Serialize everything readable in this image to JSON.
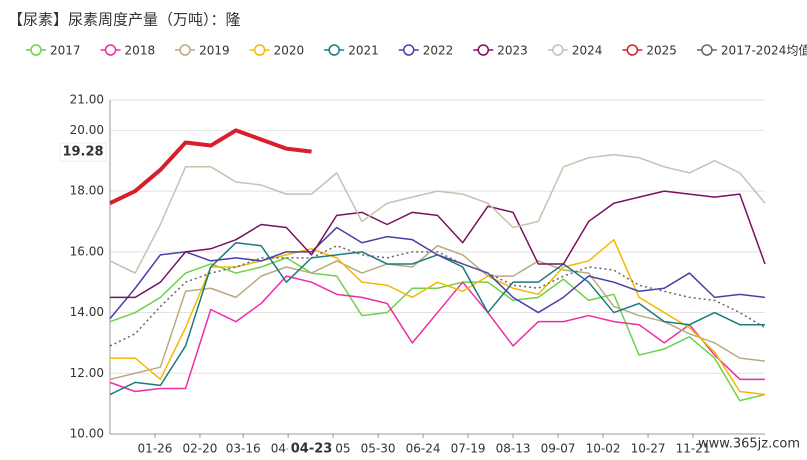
{
  "chart_data": {
    "type": "line",
    "title": "【尿素】尿素周度产量（万吨）：隆",
    "x": [
      "01-01",
      "01-15",
      "01-29",
      "02-12",
      "02-26",
      "03-12",
      "03-26",
      "04-09",
      "04-23",
      "05-07",
      "05-21",
      "06-04",
      "06-18",
      "07-02",
      "07-16",
      "07-30",
      "08-13",
      "08-27",
      "09-10",
      "09-24",
      "10-08",
      "10-22",
      "11-05",
      "11-19",
      "12-03",
      "12-17",
      "12-31"
    ],
    "xlim": [
      "01-01",
      "12-31"
    ],
    "xticks": [
      "01-26",
      "02-20",
      "03-16",
      "04-10",
      "05-05",
      "05-30",
      "06-24",
      "07-19",
      "08-13",
      "09-07",
      "10-02",
      "10-27",
      "11-21"
    ],
    "highlight_date": "04-23",
    "ylim": [
      10,
      21
    ],
    "yticks": [
      {
        "value": 10,
        "label": "10.00"
      },
      {
        "value": 12,
        "label": "12.00"
      },
      {
        "value": 14,
        "label": "14.00"
      },
      {
        "value": 16,
        "label": "16.00"
      },
      {
        "value": 18,
        "label": "18.00"
      },
      {
        "value": 20,
        "label": "20.00"
      },
      {
        "value": 21,
        "label": "21.00"
      }
    ],
    "grid": true,
    "current_value": 19.28,
    "watermark": "www.365jz.com",
    "series": [
      {
        "name": "2017",
        "color": "#6fd14a",
        "values": [
          13.7,
          14.0,
          14.5,
          15.3,
          15.6,
          15.3,
          15.5,
          15.8,
          15.3,
          15.2,
          13.9,
          14.0,
          14.8,
          14.8,
          15.0,
          15.0,
          14.4,
          14.5,
          15.1,
          14.4,
          14.6,
          12.6,
          12.8,
          13.2,
          12.5,
          11.1,
          11.3
        ]
      },
      {
        "name": "2018",
        "color": "#ee2da5",
        "values": [
          11.7,
          11.4,
          11.5,
          11.5,
          14.1,
          13.7,
          14.3,
          15.2,
          15.0,
          14.6,
          14.5,
          14.3,
          13.0,
          14.0,
          15.0,
          14.0,
          12.9,
          13.7,
          13.7,
          13.9,
          13.7,
          13.6,
          13.0,
          13.6,
          12.6,
          11.8,
          11.8
        ]
      },
      {
        "name": "2019",
        "color": "#b9aa80",
        "values": [
          11.8,
          12.0,
          12.2,
          14.7,
          14.8,
          14.5,
          15.2,
          15.5,
          15.3,
          15.7,
          15.3,
          15.6,
          15.5,
          16.2,
          15.9,
          15.2,
          15.2,
          15.7,
          15.4,
          15.3,
          14.2,
          13.9,
          13.7,
          13.3,
          13.0,
          12.5,
          12.4
        ]
      },
      {
        "name": "2020",
        "color": "#f5b800",
        "values": [
          12.5,
          12.5,
          11.8,
          13.5,
          15.5,
          15.5,
          15.7,
          15.9,
          16.1,
          15.8,
          15.0,
          14.9,
          14.5,
          15.0,
          14.7,
          15.2,
          14.8,
          14.6,
          15.5,
          15.7,
          16.4,
          14.5,
          14.0,
          13.5,
          12.7,
          11.4,
          11.3
        ]
      },
      {
        "name": "2021",
        "color": "#1a7a80",
        "values": [
          11.3,
          11.7,
          11.6,
          12.9,
          15.5,
          16.3,
          16.2,
          15.0,
          15.8,
          15.9,
          16.0,
          15.6,
          15.6,
          15.9,
          15.5,
          14.0,
          15.0,
          15.0,
          15.6,
          15.0,
          14.0,
          14.3,
          13.7,
          13.6,
          14.0,
          13.6,
          13.6
        ]
      },
      {
        "name": "2022",
        "color": "#4b3fa6",
        "values": [
          13.8,
          14.8,
          15.9,
          16.0,
          15.7,
          15.8,
          15.7,
          16.0,
          16.0,
          16.8,
          16.3,
          16.5,
          16.4,
          15.9,
          15.6,
          15.3,
          14.5,
          14.0,
          14.5,
          15.2,
          15.0,
          14.7,
          14.8,
          15.3,
          14.5,
          14.6,
          14.5
        ]
      },
      {
        "name": "2023",
        "color": "#7b1060",
        "values": [
          14.5,
          14.5,
          15.0,
          16.0,
          16.1,
          16.4,
          16.9,
          16.8,
          15.9,
          17.2,
          17.3,
          16.9,
          17.3,
          17.2,
          16.3,
          17.5,
          17.3,
          15.6,
          15.6,
          17.0,
          17.6,
          17.8,
          18.0,
          17.9,
          17.8,
          17.9,
          15.6
        ]
      },
      {
        "name": "2024",
        "color": "#c9c0b0",
        "values": [
          15.7,
          15.3,
          16.9,
          18.8,
          18.8,
          18.3,
          18.2,
          17.9,
          17.9,
          18.6,
          17.0,
          17.6,
          17.8,
          18.0,
          17.9,
          17.6,
          16.8,
          17.0,
          18.8,
          19.1,
          19.2,
          19.1,
          18.8,
          18.6,
          19.0,
          18.6,
          17.6
        ]
      },
      {
        "name": "2025",
        "color": "#d81e2a",
        "width": 4,
        "values": [
          17.6,
          18.0,
          18.7,
          19.6,
          19.5,
          20.0,
          19.7,
          19.4,
          19.3,
          null,
          null,
          null,
          null,
          null,
          null,
          null,
          null,
          null,
          null,
          null,
          null,
          null,
          null,
          null,
          null,
          null,
          null
        ]
      },
      {
        "name": "2017-2024均值",
        "color": "#666666",
        "dashed": true,
        "values": [
          12.9,
          13.3,
          14.2,
          15.0,
          15.3,
          15.5,
          15.8,
          15.8,
          15.8,
          16.2,
          15.9,
          15.8,
          16.0,
          16.0,
          15.6,
          15.3,
          14.9,
          14.8,
          15.2,
          15.5,
          15.4,
          14.9,
          14.7,
          14.5,
          14.4,
          14.0,
          13.5
        ]
      }
    ]
  }
}
